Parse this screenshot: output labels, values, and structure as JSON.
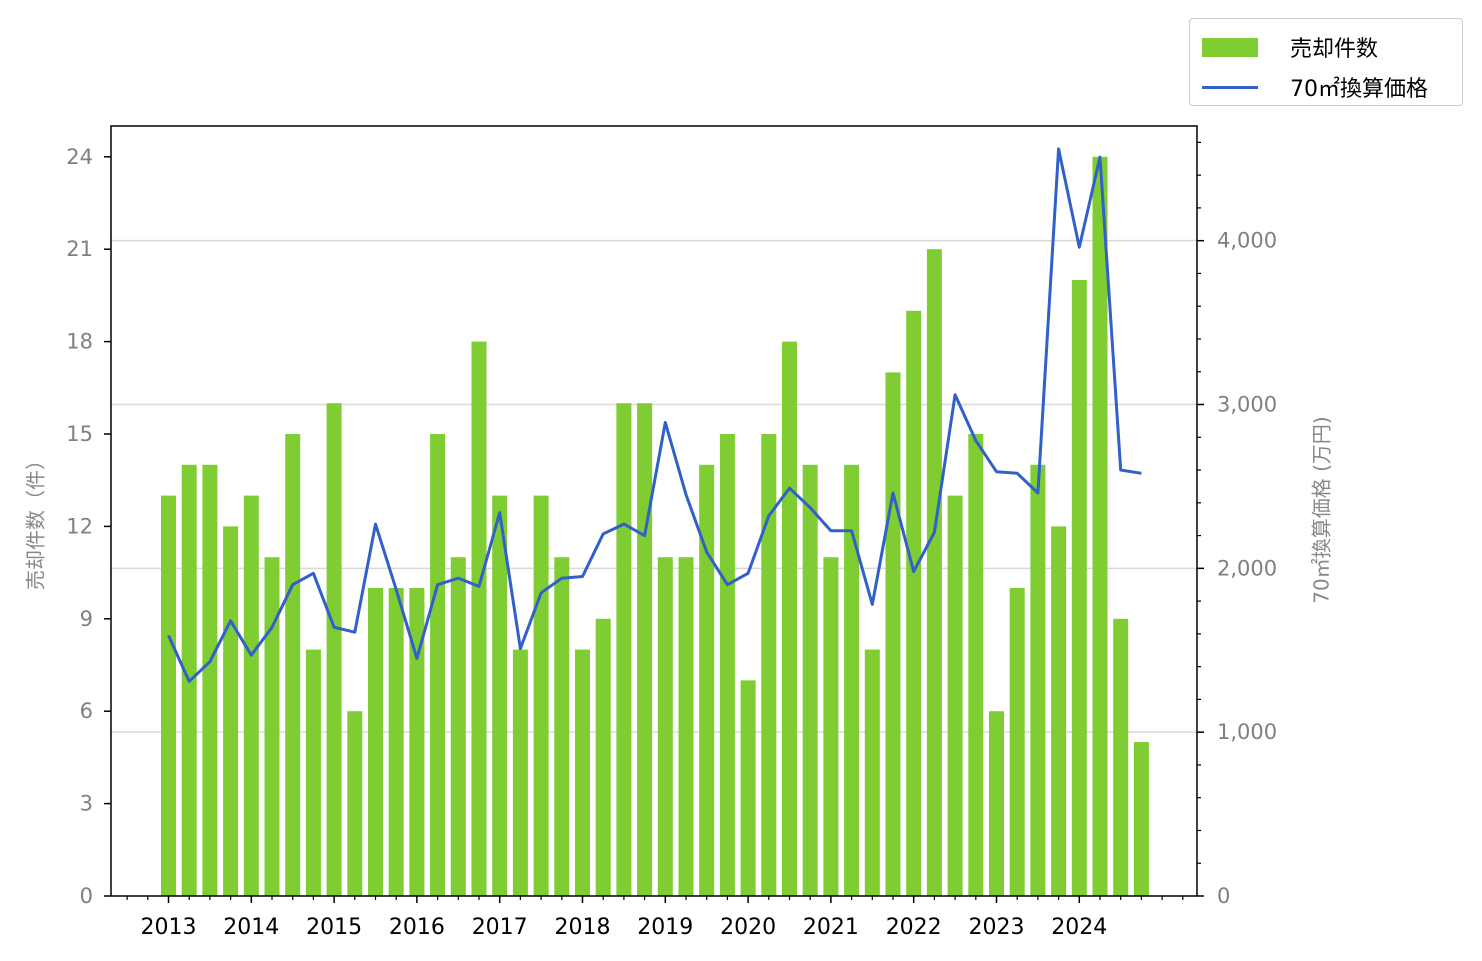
{
  "legend": {
    "bar_label": "売却件数",
    "line_label": "70㎡換算価格"
  },
  "colors": {
    "bar": "#7fcd32",
    "line": "#3060c8",
    "tick_text": "#808080",
    "grid": "#d9d9d9"
  },
  "chart_data": {
    "type": "bar",
    "categories": [
      "2013 Q1",
      "2013 Q2",
      "2013 Q3",
      "2013 Q4",
      "2014 Q1",
      "2014 Q2",
      "2014 Q3",
      "2014 Q4",
      "2015 Q1",
      "2015 Q2",
      "2015 Q3",
      "2015 Q4",
      "2016 Q1",
      "2016 Q2",
      "2016 Q3",
      "2016 Q4",
      "2017 Q1",
      "2017 Q2",
      "2017 Q3",
      "2017 Q4",
      "2018 Q1",
      "2018 Q2",
      "2018 Q3",
      "2018 Q4",
      "2019 Q1",
      "2019 Q2",
      "2019 Q3",
      "2019 Q4",
      "2020 Q1",
      "2020 Q2",
      "2020 Q3",
      "2020 Q4",
      "2021 Q1",
      "2021 Q2",
      "2021 Q3",
      "2021 Q4",
      "2022 Q1",
      "2022 Q2",
      "2022 Q3",
      "2022 Q4",
      "2023 Q1",
      "2023 Q2",
      "2023 Q3",
      "2023 Q4",
      "2024 Q1",
      "2024 Q2",
      "2024 Q3",
      "2024 Q4"
    ],
    "x_tick_labels": [
      "2013",
      "2014",
      "2015",
      "2016",
      "2017",
      "2018",
      "2019",
      "2020",
      "2021",
      "2022",
      "2023",
      "2024"
    ],
    "series": [
      {
        "name": "売却件数",
        "type": "bar",
        "axis": "left",
        "values": [
          13,
          14,
          14,
          12,
          13,
          11,
          15,
          8,
          16,
          6,
          10,
          10,
          10,
          15,
          11,
          18,
          13,
          8,
          13,
          11,
          8,
          9,
          16,
          16,
          11,
          11,
          14,
          15,
          7,
          15,
          18,
          14,
          11,
          14,
          8,
          17,
          19,
          21,
          13,
          15,
          6,
          10,
          14,
          12,
          20,
          24,
          9,
          5
        ]
      },
      {
        "name": "70㎡換算価格",
        "type": "line",
        "axis": "right",
        "values": [
          1590,
          1310,
          1430,
          1680,
          1470,
          1640,
          1900,
          1970,
          1640,
          1610,
          2270,
          1870,
          1450,
          1900,
          1940,
          1890,
          2340,
          1510,
          1850,
          1940,
          1950,
          2210,
          2270,
          2200,
          2890,
          2450,
          2100,
          1900,
          1970,
          2320,
          2490,
          2370,
          2230,
          2230,
          1780,
          2460,
          1980,
          2220,
          3060,
          2780,
          2590,
          2580,
          2460,
          4560,
          3960,
          4510,
          2600,
          2580
        ]
      }
    ],
    "ylabel": "売却件数（件）",
    "ylabel_right": "70㎡換算価格 (万円)",
    "ylim": [
      0,
      25
    ],
    "ylim_right": [
      0,
      4700
    ],
    "yticks": [
      "0",
      "3",
      "6",
      "9",
      "12",
      "15",
      "18",
      "21",
      "24"
    ],
    "yticks_right": [
      "0",
      "1,000",
      "2,000",
      "3,000",
      "4,000"
    ],
    "grid": "horizontal, right axis",
    "legend_position": "top-right outside"
  }
}
